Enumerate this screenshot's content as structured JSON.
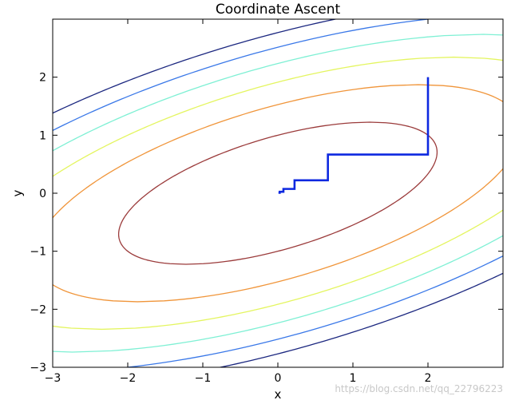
{
  "chart_data": {
    "type": "line",
    "title": "Coordinate Ascent",
    "xlabel": "x",
    "ylabel": "y",
    "xlim": [
      -3,
      3
    ],
    "ylim": [
      -3,
      3
    ],
    "xticks": [
      -3,
      -2,
      -1,
      0,
      1,
      2
    ],
    "yticks": [
      -3,
      -2,
      -1,
      0,
      1,
      2
    ],
    "x_tick_labels": [
      "−3",
      "−2",
      "−1",
      "0",
      "1",
      "2"
    ],
    "y_tick_labels": [
      "−3",
      "−2",
      "−1",
      "0",
      "1",
      "2"
    ],
    "grid": false,
    "contours": {
      "function": "f(x,y) = -x^2 - 3y^2 + 2xy",
      "levels": [
        {
          "level": -3,
          "color": "#9b3b3b"
        },
        {
          "level": -7,
          "color": "#f0953a"
        },
        {
          "level": -11,
          "color": "#e4f560"
        },
        {
          "level": -15,
          "color": "#7ef0d4"
        },
        {
          "level": -19,
          "color": "#3a78e8"
        },
        {
          "level": -23,
          "color": "#1c2880"
        }
      ]
    },
    "series": [
      {
        "color": "#0d28e0",
        "x": [
          2,
          2,
          0.6667,
          0.6667,
          0.2222,
          0.2222,
          0.0741,
          0.0741,
          0.0247,
          0.0247,
          0.0082
        ],
        "y": [
          2,
          0.6667,
          0.6667,
          0.2222,
          0.2222,
          0.0741,
          0.0741,
          0.0247,
          0.0247,
          0.0082,
          0.0082
        ]
      }
    ],
    "watermark": "https://blog.csdn.net/qq_22796223"
  }
}
